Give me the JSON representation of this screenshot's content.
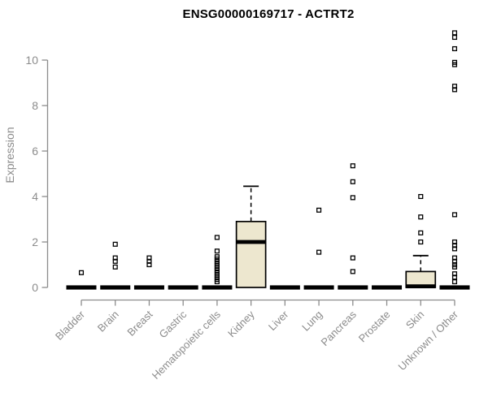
{
  "colors": {
    "background": "#ffffff",
    "title_text": "#000000",
    "axis_line": "#8c8c8c",
    "axis_text": "#8c8c8c",
    "box_fill": "#ede7cf",
    "box_stroke": "#000000",
    "outlier_stroke": "#000000"
  },
  "chart_data": {
    "type": "boxplot",
    "title": "ENSG00000169717 - ACTRT2",
    "xlabel": "",
    "ylabel": "Expression",
    "ylim": [
      0,
      11.3
    ],
    "yticks": [
      0,
      2,
      4,
      6,
      8,
      10
    ],
    "grid": false,
    "legend": null,
    "categories": [
      "Bladder",
      "Brain",
      "Breast",
      "Gastric",
      "Hematopoietic cells",
      "Kidney",
      "Liver",
      "Lung",
      "Pancreas",
      "Prostate",
      "Skin",
      "Unknown / Other"
    ],
    "boxes": [
      {
        "category": "Bladder",
        "q1": 0,
        "median": 0,
        "q3": 0,
        "whisker_low": 0,
        "whisker_high": 0,
        "outliers": [
          0.65
        ]
      },
      {
        "category": "Brain",
        "q1": 0,
        "median": 0,
        "q3": 0,
        "whisker_low": 0,
        "whisker_high": 0,
        "outliers": [
          1.9,
          1.3,
          1.15,
          0.9
        ]
      },
      {
        "category": "Breast",
        "q1": 0,
        "median": 0,
        "q3": 0,
        "whisker_low": 0,
        "whisker_high": 0,
        "outliers": [
          1.3,
          1.15,
          1.0
        ]
      },
      {
        "category": "Gastric",
        "q1": 0,
        "median": 0,
        "q3": 0,
        "whisker_low": 0,
        "whisker_high": 0,
        "outliers": []
      },
      {
        "category": "Hematopoietic cells",
        "q1": 0,
        "median": 0,
        "q3": 0,
        "whisker_low": 0,
        "whisker_high": 0,
        "outliers": [
          2.2,
          1.6,
          1.35,
          1.25,
          1.15,
          1.05,
          0.95,
          0.85,
          0.75,
          0.65,
          0.55,
          0.45,
          0.35,
          0.25
        ]
      },
      {
        "category": "Kidney",
        "q1": 0,
        "median": 2.0,
        "q3": 2.9,
        "whisker_low": 0,
        "whisker_high": 4.45,
        "outliers": []
      },
      {
        "category": "Liver",
        "q1": 0,
        "median": 0,
        "q3": 0,
        "whisker_low": 0,
        "whisker_high": 0,
        "outliers": []
      },
      {
        "category": "Lung",
        "q1": 0,
        "median": 0,
        "q3": 0,
        "whisker_low": 0,
        "whisker_high": 0,
        "outliers": [
          3.4,
          1.55
        ]
      },
      {
        "category": "Pancreas",
        "q1": 0,
        "median": 0,
        "q3": 0,
        "whisker_low": 0,
        "whisker_high": 0,
        "outliers": [
          5.35,
          4.65,
          3.95,
          1.3,
          0.7
        ]
      },
      {
        "category": "Prostate",
        "q1": 0,
        "median": 0,
        "q3": 0,
        "whisker_low": 0,
        "whisker_high": 0,
        "outliers": []
      },
      {
        "category": "Skin",
        "q1": 0,
        "median": 0.05,
        "q3": 0.7,
        "whisker_low": 0,
        "whisker_high": 1.4,
        "outliers": [
          4.0,
          3.1,
          2.4,
          2.0
        ]
      },
      {
        "category": "Unknown / Other",
        "q1": 0,
        "median": 0,
        "q3": 0,
        "whisker_low": 0,
        "whisker_high": 0,
        "outliers": [
          11.2,
          11.0,
          10.5,
          9.9,
          9.8,
          8.85,
          8.7,
          3.2,
          2.0,
          1.85,
          1.7,
          1.3,
          1.15,
          1.0,
          0.9,
          0.6,
          0.45,
          0.25
        ]
      }
    ]
  }
}
